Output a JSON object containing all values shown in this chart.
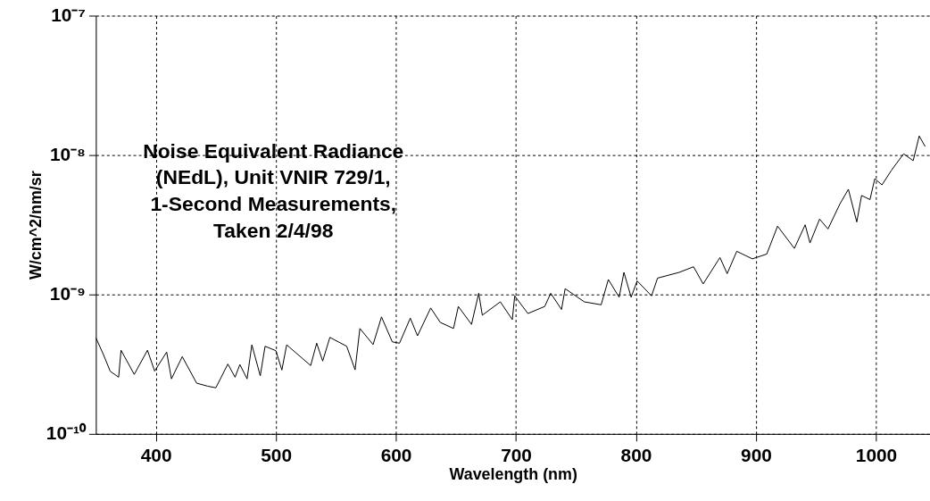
{
  "chart_data": {
    "type": "line",
    "title": "Noise Equivalent Radiance\n(NEdL), Unit VNIR 729/1,\n1-Second Measurements,\nTaken 2/4/98",
    "xlabel": "Wavelength (nm)",
    "ylabel": "W/cm^2/nm/sr",
    "log": "y",
    "grid": true,
    "marker": "none",
    "line_style": "solid",
    "xlim": [
      350,
      1045
    ],
    "xticks": [
      400,
      500,
      600,
      700,
      800,
      900,
      1000
    ],
    "ylim": [
      1e-10,
      1e-07
    ],
    "yticks": [
      {
        "value": 1e-10,
        "label": "10⁻¹⁰"
      },
      {
        "value": 1e-09,
        "label": "10⁻⁹"
      },
      {
        "value": 1e-08,
        "label": "10⁻⁸"
      },
      {
        "value": 1e-07,
        "label": "10⁻⁷"
      }
    ],
    "series": [
      {
        "color": "#000000",
        "x": [
          350,
          356,
          362,
          369,
          371,
          382,
          393,
          399,
          409,
          413,
          422,
          434,
          443,
          450,
          460,
          466,
          470,
          476,
          480,
          487,
          491,
          500,
          505,
          509,
          529,
          534,
          539,
          545,
          559,
          566,
          570,
          581,
          588,
          597,
          603,
          612,
          618,
          629,
          637,
          648,
          652,
          663,
          669,
          672,
          687,
          697,
          699,
          710,
          724,
          729,
          738,
          741,
          757,
          771,
          777,
          786,
          790,
          796,
          801,
          813,
          818,
          836,
          848,
          856,
          870,
          876,
          884,
          897,
          909,
          918,
          932,
          941,
          945,
          953,
          960,
          970,
          977,
          984,
          988,
          995,
          999,
          1005,
          1013,
          1023,
          1031,
          1036,
          1041
        ],
        "values": [
          4.9e-10,
          3.76e-10,
          2.81e-10,
          2.55e-10,
          3.98e-10,
          2.67e-10,
          3.98e-10,
          2.82e-10,
          3.86e-10,
          2.48e-10,
          3.58e-10,
          2.31e-10,
          2.2e-10,
          2.14e-10,
          3.17e-10,
          2.55e-10,
          3.14e-10,
          2.48e-10,
          4.35e-10,
          2.61e-10,
          4.25e-10,
          3.95e-10,
          2.87e-10,
          4.35e-10,
          3.09e-10,
          4.47e-10,
          3.33e-10,
          4.92e-10,
          4.25e-10,
          2.88e-10,
          5.7e-10,
          4.37e-10,
          6.9e-10,
          4.57e-10,
          4.47e-10,
          6.76e-10,
          5.05e-10,
          8e-10,
          6.3e-10,
          5.7e-10,
          8.2e-10,
          6.1e-10,
          1.02e-09,
          7.1e-10,
          8.85e-10,
          6.6e-10,
          9.76e-10,
          7.3e-10,
          8.2e-10,
          1.02e-09,
          7.8e-10,
          1.1e-09,
          8.85e-10,
          8.43e-10,
          1.28e-09,
          9.55e-10,
          1.44e-09,
          9.55e-10,
          1.25e-09,
          9.77e-10,
          1.31e-09,
          1.44e-09,
          1.58e-09,
          1.19e-09,
          1.84e-09,
          1.41e-09,
          2.04e-09,
          1.8e-09,
          1.95e-09,
          3.09e-09,
          2.14e-09,
          3.16e-09,
          2.34e-09,
          3.47e-09,
          2.95e-09,
          4.47e-09,
          5.68e-09,
          3.31e-09,
          5.13e-09,
          4.79e-09,
          6.76e-09,
          6.11e-09,
          7.8e-09,
          1.02e-08,
          9.12e-09,
          1.37e-08,
          1.15e-08
        ]
      }
    ]
  }
}
